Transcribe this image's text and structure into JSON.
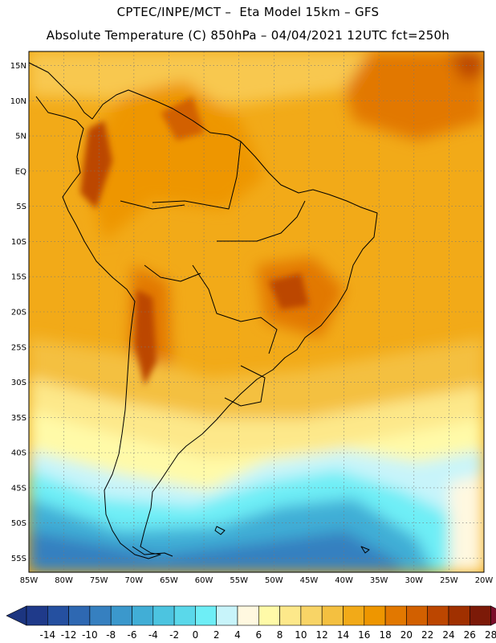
{
  "header": {
    "line1": "CPTEC/INPE/MCT –  Eta Model 15km – GFS",
    "line2": "Absolute Temperature (C) 850hPa – 04/04/2021 12UTC fct=250h"
  },
  "axes": {
    "lat_labels": [
      "15N",
      "10N",
      "5N",
      "EQ",
      "5S",
      "10S",
      "15S",
      "20S",
      "25S",
      "30S",
      "35S",
      "40S",
      "45S",
      "50S",
      "55S"
    ],
    "lat_values": [
      15,
      10,
      5,
      0,
      -5,
      -10,
      -15,
      -20,
      -25,
      -30,
      -35,
      -40,
      -45,
      -50,
      -55
    ],
    "lon_labels": [
      "85W",
      "80W",
      "75W",
      "70W",
      "65W",
      "60W",
      "55W",
      "50W",
      "45W",
      "40W",
      "35W",
      "30W",
      "25W",
      "20W"
    ],
    "lon_values": [
      -85,
      -80,
      -75,
      -70,
      -65,
      -60,
      -55,
      -50,
      -45,
      -40,
      -35,
      -30,
      -25,
      -20
    ],
    "lon_range": [
      -85,
      -20
    ],
    "lat_range": [
      -57,
      17
    ],
    "grid": true
  },
  "colorbar": {
    "labels": [
      "-14",
      "-12",
      "-10",
      "-8",
      "-6",
      "-4",
      "-2",
      "0",
      "2",
      "4",
      "6",
      "8",
      "10",
      "12",
      "14",
      "16",
      "18",
      "20",
      "22",
      "24",
      "26",
      "28"
    ],
    "colors": [
      "#1f3a8a",
      "#2550a0",
      "#2e68b2",
      "#3680c0",
      "#3b98cc",
      "#41aed6",
      "#4cc4e0",
      "#5ad8ea",
      "#6eeef6",
      "#c8f4fa",
      "#fff8e0",
      "#fffaa8",
      "#fde88a",
      "#f8d466",
      "#f4c040",
      "#f2aa18",
      "#ee9600",
      "#e27800",
      "#d26000",
      "#bc4600",
      "#a03000",
      "#7c1a08"
    ],
    "under_color": "#1c3580",
    "over_color": "#7a0e2a"
  }
}
